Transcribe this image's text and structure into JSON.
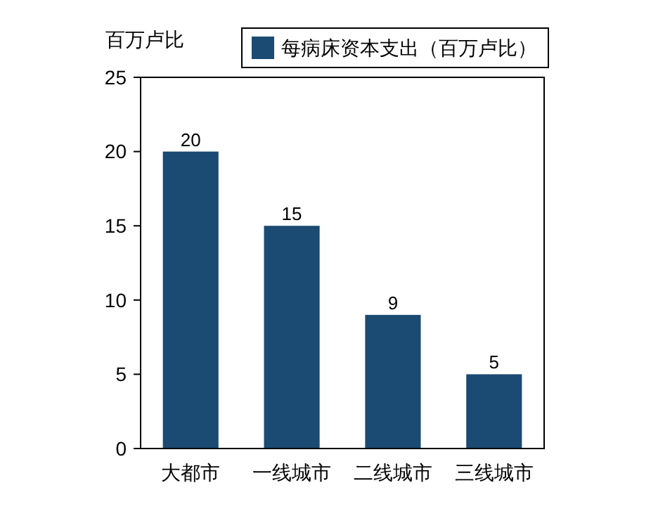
{
  "chart_data": {
    "type": "bar",
    "ylabel": "百万卢比",
    "categories": [
      "大都市",
      "一线城市",
      "二线城市",
      "三线城市"
    ],
    "series": [
      {
        "name": "每病床资本支出（百万卢比）",
        "color": "#1b4a72",
        "values": [
          20,
          15,
          9,
          5
        ]
      }
    ],
    "ylim": [
      0,
      25
    ],
    "yticks": [
      0,
      5,
      10,
      15,
      20,
      25
    ],
    "grid": false,
    "legend": "top",
    "data_labels": true
  }
}
